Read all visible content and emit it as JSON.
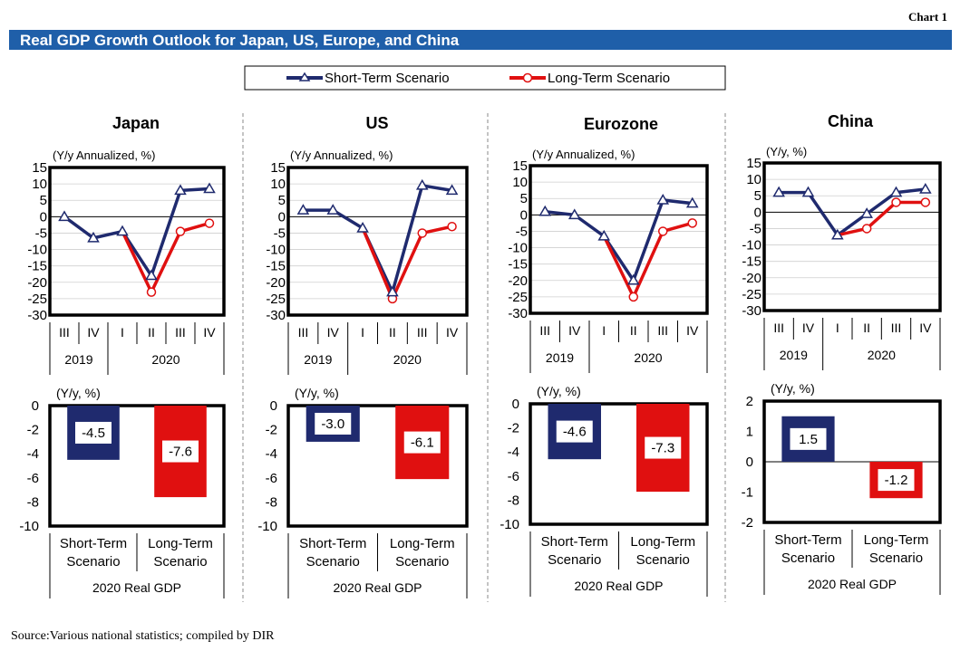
{
  "chart_label": "Chart 1",
  "title": "Real GDP Growth Outlook for Japan, US, Europe, and China",
  "source": "Source:Various national statistics; compiled by DIR",
  "colors": {
    "header_bg": "#1f5fa9",
    "short": "#1f2a6e",
    "long": "#e01010",
    "text": "#000000"
  },
  "legend": {
    "short_label": "Short-Term Scenario",
    "long_label": "Long-Term Scenario"
  },
  "quarters": [
    "III",
    "IV",
    "I",
    "II",
    "III",
    "IV"
  ],
  "years": [
    "2019",
    "2020"
  ],
  "bar_categories": [
    "Short-Term\nScenario",
    "Long-Term\nScenario"
  ],
  "bar_group_label": "2020 Real GDP",
  "chart_data": [
    {
      "type": "line",
      "region": "Japan",
      "ylabel": "(Y/y Annualized, %)",
      "ylim": [
        -30,
        15
      ],
      "yticks": [
        15,
        10,
        5,
        0,
        -5,
        -10,
        -15,
        -20,
        -25,
        -30
      ],
      "x": [
        "III",
        "IV",
        "I",
        "II",
        "III",
        "IV"
      ],
      "series": [
        {
          "name": "Short-Term Scenario",
          "values": [
            0,
            -6.5,
            -4.5,
            -18,
            8,
            8.5
          ]
        },
        {
          "name": "Long-Term Scenario",
          "values": [
            null,
            null,
            -4.5,
            -23,
            -4.5,
            -2
          ]
        }
      ]
    },
    {
      "type": "line",
      "region": "US",
      "ylabel": "(Y/y Annualized, %)",
      "ylim": [
        -30,
        15
      ],
      "yticks": [
        15,
        10,
        5,
        0,
        -5,
        -10,
        -15,
        -20,
        -25,
        -30
      ],
      "x": [
        "III",
        "IV",
        "I",
        "II",
        "III",
        "IV"
      ],
      "series": [
        {
          "name": "Short-Term Scenario",
          "values": [
            2,
            2,
            -3.5,
            -23,
            9.5,
            8
          ]
        },
        {
          "name": "Long-Term Scenario",
          "values": [
            null,
            null,
            -3.5,
            -25,
            -5,
            -3
          ]
        }
      ]
    },
    {
      "type": "line",
      "region": "Eurozone",
      "ylabel": "(Y/y Annualized, %)",
      "ylim": [
        -30,
        15
      ],
      "yticks": [
        15,
        10,
        5,
        0,
        -5,
        -10,
        -15,
        -20,
        -25,
        -30
      ],
      "x": [
        "III",
        "IV",
        "I",
        "II",
        "III",
        "IV"
      ],
      "series": [
        {
          "name": "Short-Term Scenario",
          "values": [
            1,
            0,
            -6.5,
            -20,
            4.5,
            3.5
          ]
        },
        {
          "name": "Long-Term Scenario",
          "values": [
            null,
            null,
            -6.5,
            -25,
            -5,
            -2.5
          ]
        }
      ]
    },
    {
      "type": "line",
      "region": "China",
      "ylabel": "(Y/y, %)",
      "ylim": [
        -30,
        15
      ],
      "yticks": [
        15,
        10,
        5,
        0,
        -5,
        -10,
        -15,
        -20,
        -25,
        -30
      ],
      "x": [
        "III",
        "IV",
        "I",
        "II",
        "III",
        "IV"
      ],
      "series": [
        {
          "name": "Short-Term Scenario",
          "values": [
            6,
            6,
            -7,
            -0.5,
            6,
            7
          ]
        },
        {
          "name": "Long-Term Scenario",
          "values": [
            null,
            null,
            -7,
            -5,
            3,
            3
          ]
        }
      ]
    },
    {
      "type": "bar",
      "region": "Japan",
      "ylabel": "(Y/y,  %)",
      "ylim": [
        -10,
        0
      ],
      "yticks": [
        0,
        -2,
        -4,
        -6,
        -8,
        -10
      ],
      "categories": [
        "Short-Term Scenario",
        "Long-Term Scenario"
      ],
      "values": [
        -4.5,
        -7.6
      ],
      "labels": [
        "-4.5",
        "-7.6"
      ]
    },
    {
      "type": "bar",
      "region": "US",
      "ylabel": "(Y/y,  %)",
      "ylim": [
        -10,
        0
      ],
      "yticks": [
        0,
        -2,
        -4,
        -6,
        -8,
        -10
      ],
      "categories": [
        "Short-Term Scenario",
        "Long-Term Scenario"
      ],
      "values": [
        -3.0,
        -6.1
      ],
      "labels": [
        "-3.0",
        "-6.1"
      ]
    },
    {
      "type": "bar",
      "region": "Eurozone",
      "ylabel": "(Y/y,  %)",
      "ylim": [
        -10,
        0
      ],
      "yticks": [
        0,
        -2,
        -4,
        -6,
        -8,
        -10
      ],
      "categories": [
        "Short-Term Scenario",
        "Long-Term Scenario"
      ],
      "values": [
        -4.6,
        -7.3
      ],
      "labels": [
        "-4.6",
        "-7.3"
      ]
    },
    {
      "type": "bar",
      "region": "China",
      "ylabel": "(Y/y,  %)",
      "ylim": [
        -2,
        2
      ],
      "yticks": [
        2,
        1,
        0,
        -1,
        -2
      ],
      "categories": [
        "Short-Term Scenario",
        "Long-Term Scenario"
      ],
      "values": [
        1.5,
        -1.2
      ],
      "labels": [
        "1.5",
        "-1.2"
      ]
    }
  ]
}
